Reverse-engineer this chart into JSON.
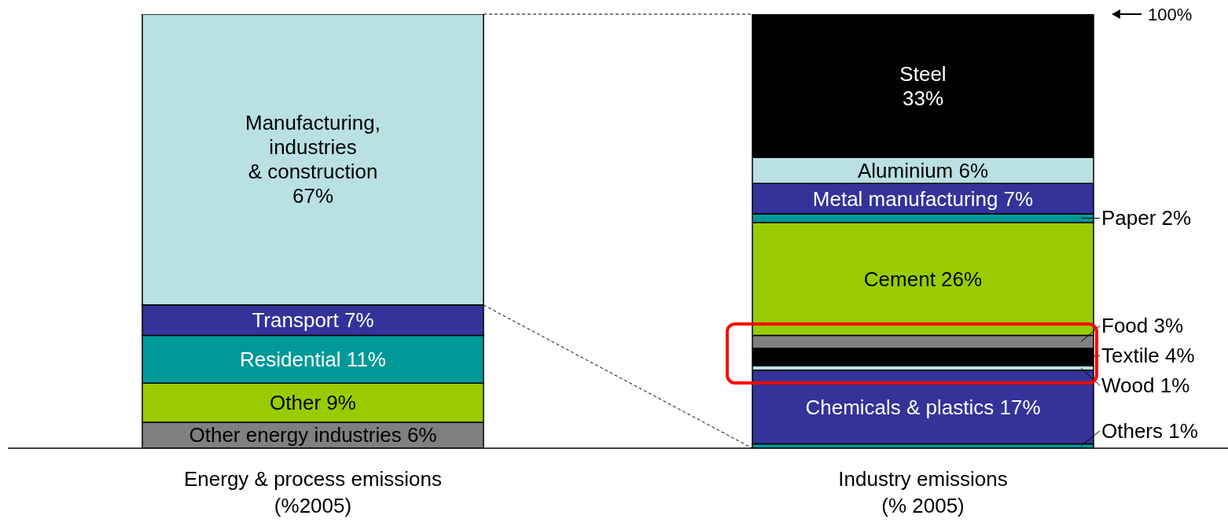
{
  "chart_data": {
    "type": "bar",
    "stacked": true,
    "categories": [
      "Energy & process emissions\n(%2005)",
      "Industry emissions\n(% 2005)"
    ],
    "ylim": [
      0,
      100
    ],
    "tick_labels": "x",
    "annotations": [
      "100%"
    ],
    "series": [
      {
        "name": "Other energy industries",
        "color": "#808080",
        "values": [
          6,
          null
        ],
        "value_labels": [
          "6%",
          null
        ]
      },
      {
        "name": "Other",
        "color": "#99cc00",
        "values": [
          9,
          null
        ],
        "value_labels": [
          "9%",
          null
        ]
      },
      {
        "name": "Residential",
        "color": "#009999",
        "values": [
          11,
          null
        ],
        "value_labels": [
          "11%",
          null
        ]
      },
      {
        "name": "Transport",
        "color": "#333399",
        "values": [
          7,
          null
        ],
        "value_labels": [
          "7%",
          null
        ]
      },
      {
        "name": "Manufacturing,\nindustries\n& construction",
        "color": "#b9e0e3",
        "values": [
          67,
          null
        ],
        "value_labels": [
          "67%",
          null
        ]
      },
      {
        "name": "Others",
        "color": "#009999",
        "values": [
          null,
          1
        ],
        "value_labels": [
          null,
          "1%"
        ]
      },
      {
        "name": "Chemicals & plastics",
        "color": "#333399",
        "values": [
          null,
          17
        ],
        "value_labels": [
          null,
          "17%"
        ]
      },
      {
        "name": "Wood",
        "color": "#b9e0e3",
        "values": [
          null,
          1
        ],
        "value_labels": [
          null,
          "1%"
        ]
      },
      {
        "name": "Textile",
        "color": "#000000",
        "values": [
          null,
          4
        ],
        "value_labels": [
          null,
          "4%"
        ]
      },
      {
        "name": "Food",
        "color": "#808080",
        "values": [
          null,
          3
        ],
        "value_labels": [
          null,
          "3%"
        ]
      },
      {
        "name": "Cement",
        "color": "#99cc00",
        "values": [
          null,
          26
        ],
        "value_labels": [
          null,
          "26%"
        ]
      },
      {
        "name": "Paper",
        "color": "#009999",
        "values": [
          null,
          2
        ],
        "value_labels": [
          null,
          "2%"
        ]
      },
      {
        "name": "Metal manufacturing",
        "color": "#333399",
        "values": [
          null,
          7
        ],
        "value_labels": [
          null,
          "7%"
        ]
      },
      {
        "name": "Aluminium",
        "color": "#b9e0e3",
        "values": [
          null,
          6
        ],
        "value_labels": [
          null,
          "6%"
        ]
      },
      {
        "name": "Steel",
        "color": "#000000",
        "values": [
          null,
          33
        ],
        "value_labels": [
          null,
          "33%"
        ]
      }
    ]
  }
}
